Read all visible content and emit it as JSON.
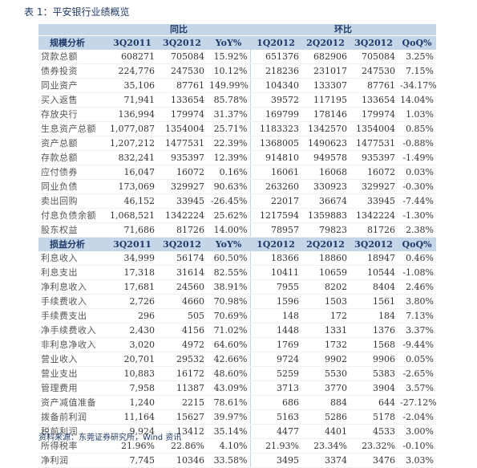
{
  "caption": "表 1：平安银行业绩概览",
  "group_headers": {
    "yoy": "同比",
    "qoq": "环比"
  },
  "section1": {
    "headers": [
      "规模分析",
      "3Q2011",
      "3Q2012",
      "YoY%",
      "1Q2012",
      "2Q2012",
      "3Q2012",
      "QoQ%"
    ],
    "rows": [
      [
        "贷款总额",
        "608271",
        "705084",
        "15.92%",
        "651376",
        "682906",
        "705084",
        "3.25%"
      ],
      [
        "债券投资",
        "224,776",
        "247530",
        "10.12%",
        "218236",
        "231017",
        "247530",
        "7.15%"
      ],
      [
        "同业资产",
        "35,106",
        "87761",
        "149.99%",
        "104340",
        "133307",
        "87761",
        "-34.17%"
      ],
      [
        "买入返售",
        "71,941",
        "133654",
        "85.78%",
        "39572",
        "117195",
        "133654",
        "14.04%"
      ],
      [
        "存放央行",
        "136,994",
        "179974",
        "31.37%",
        "169799",
        "178146",
        "179974",
        "1.03%"
      ],
      [
        "生息资产总额",
        "1,077,087",
        "1354004",
        "25.71%",
        "1183323",
        "1342570",
        "1354004",
        "0.85%"
      ],
      [
        "资产总额",
        "1,207,212",
        "1477531",
        "22.39%",
        "1368005",
        "1490623",
        "1477531",
        "-0.88%"
      ],
      [
        "存款总额",
        "832,241",
        "935397",
        "12.39%",
        "914810",
        "949578",
        "935397",
        "-1.49%"
      ],
      [
        "应付债券",
        "16,047",
        "16072",
        "0.16%",
        "16061",
        "16068",
        "16072",
        "0.03%"
      ],
      [
        "同业负债",
        "173,069",
        "329927",
        "90.63%",
        "263260",
        "330923",
        "329927",
        "-0.30%"
      ],
      [
        "卖出回购",
        "46,152",
        "33945",
        "-26.45%",
        "22017",
        "36674",
        "33945",
        "-7.44%"
      ],
      [
        "付息负债余额",
        "1,068,521",
        "1342224",
        "25.62%",
        "1217594",
        "1359883",
        "1342224",
        "-1.30%"
      ],
      [
        "股东权益",
        "71,686",
        "81726",
        "14.00%",
        "78957",
        "79823",
        "81726",
        "2.38%"
      ]
    ]
  },
  "section2": {
    "headers": [
      "损益分析",
      "3Q2011",
      "3Q2012",
      "YoY%",
      "1Q2012",
      "2Q2012",
      "3Q2012",
      "QoQ%"
    ],
    "rows": [
      [
        "利息收入",
        "34,999",
        "56174",
        "60.50%",
        "18366",
        "18860",
        "18947",
        "0.46%"
      ],
      [
        "利息支出",
        "17,318",
        "31614",
        "82.55%",
        "10411",
        "10659",
        "10544",
        "-1.08%"
      ],
      [
        "净利息收入",
        "17,681",
        "24560",
        "38.91%",
        "7955",
        "8202",
        "8404",
        "2.46%"
      ],
      [
        "手续费收入",
        "2,726",
        "4660",
        "70.98%",
        "1596",
        "1503",
        "1561",
        "3.80%"
      ],
      [
        "手续费支出",
        "296",
        "505",
        "70.69%",
        "148",
        "172",
        "184",
        "7.13%"
      ],
      [
        "净手续费收入",
        "2,430",
        "4156",
        "71.02%",
        "1448",
        "1331",
        "1376",
        "3.37%"
      ],
      [
        "非利息净收入",
        "3,020",
        "4972",
        "64.60%",
        "1769",
        "1732",
        "1568",
        "-9.44%"
      ],
      [
        "营业收入",
        "20,701",
        "29532",
        "42.66%",
        "9724",
        "9902",
        "9906",
        "0.05%"
      ],
      [
        "营业支出",
        "10,883",
        "16172",
        "48.60%",
        "5259",
        "5530",
        "5383",
        "-2.65%"
      ],
      [
        "管理费用",
        "7,958",
        "11387",
        "43.09%",
        "3713",
        "3770",
        "3904",
        "3.57%"
      ],
      [
        "资产减值准备",
        "1,240",
        "2215",
        "78.61%",
        "686",
        "884",
        "644",
        "-27.12%"
      ],
      [
        "拨备前利润",
        "11,164",
        "15627",
        "39.97%",
        "5163",
        "5286",
        "5178",
        "-2.04%"
      ],
      [
        "税前利润",
        "9,924",
        "13412",
        "35.14%",
        "4477",
        "4401",
        "4533",
        "3.00%"
      ],
      [
        "所得税率",
        "21.96%",
        "22.86%",
        "4.10%",
        "21.93%",
        "23.34%",
        "23.32%",
        "-0.10%"
      ],
      [
        "净利润",
        "7,745",
        "10346",
        "33.58%",
        "3495",
        "3374",
        "3476",
        "3.03%"
      ]
    ]
  },
  "source": "资料来源：东莞证券研究所，Wind 资讯"
}
